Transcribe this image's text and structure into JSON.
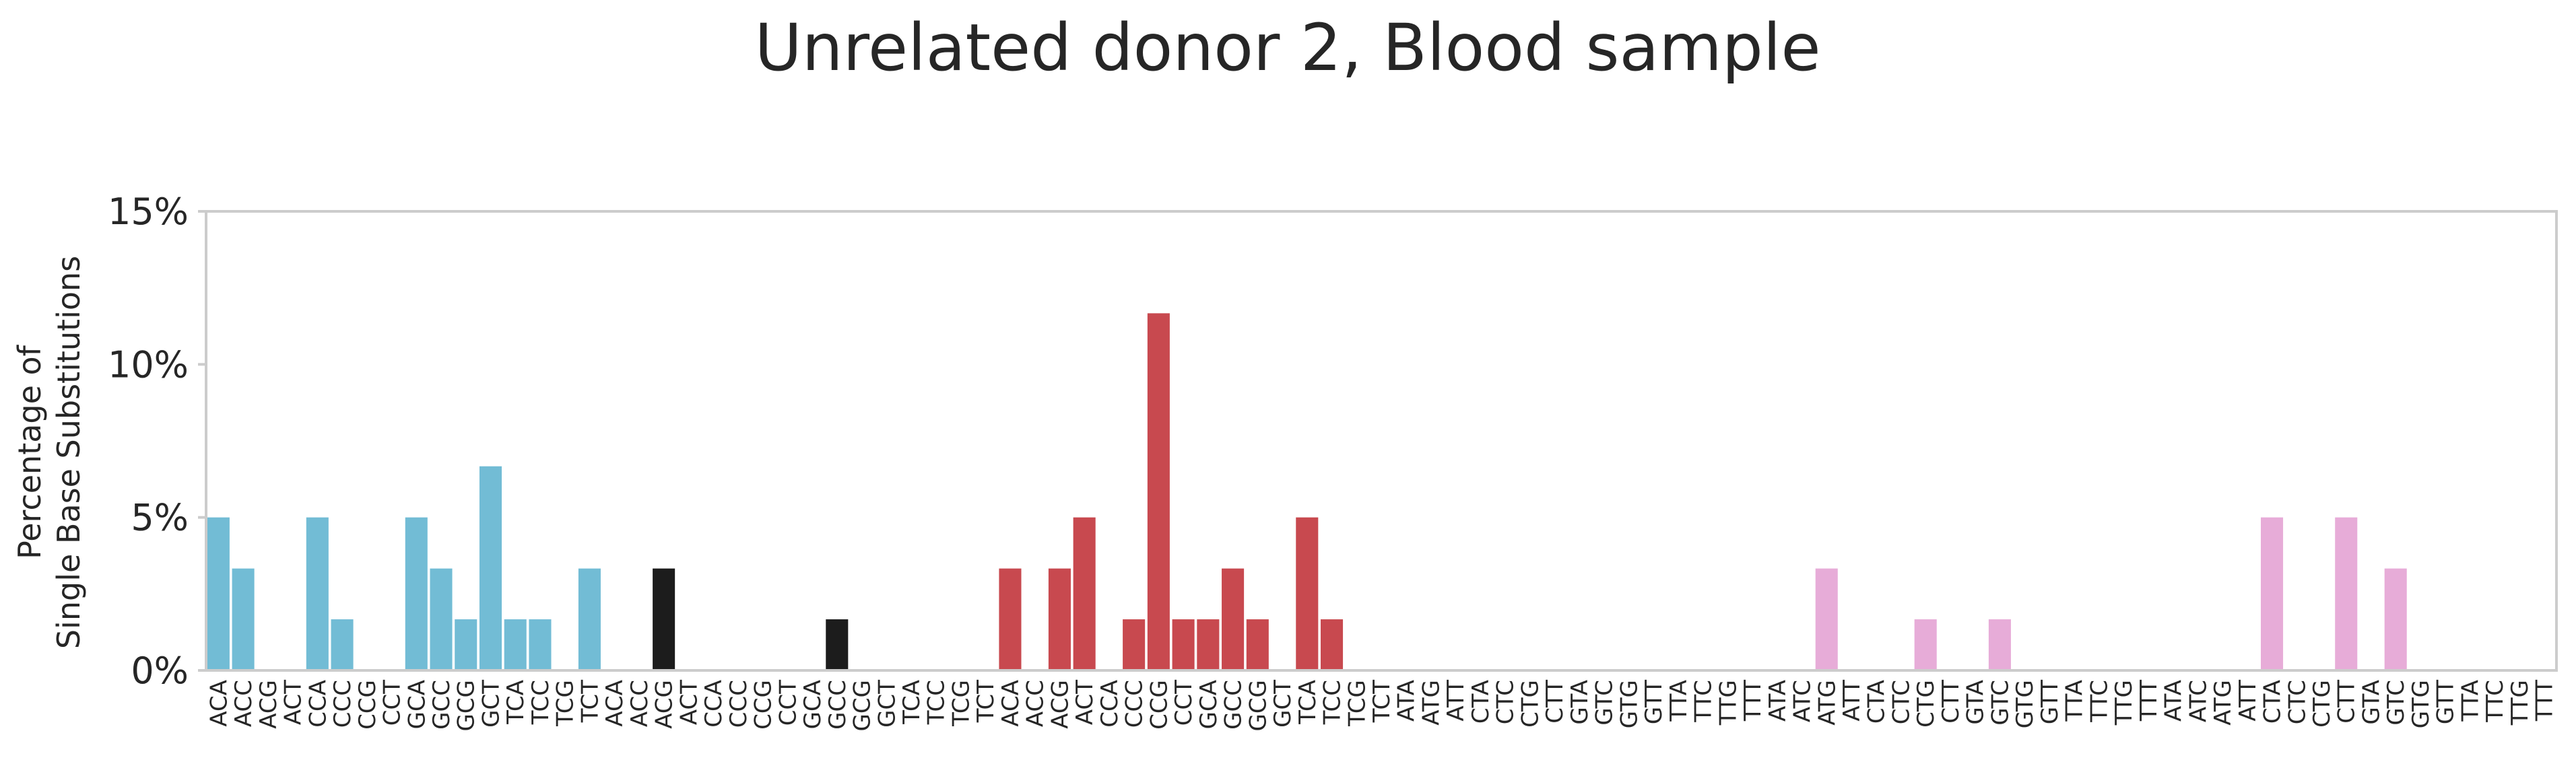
{
  "chart_data": {
    "type": "bar",
    "title": "Unrelated donor 2, Blood sample",
    "ylabel_lines": [
      "Percentage of",
      "Single Base Substitutions"
    ],
    "ylim": [
      0,
      15
    ],
    "yticks": [
      0,
      5,
      10,
      15
    ],
    "ytick_labels": [
      "0%",
      "5%",
      "10%",
      "15%"
    ],
    "grid": false,
    "group_colors": [
      "#72bcd5",
      "#1c1c1c",
      "#c8494f",
      "#54a866",
      "#e7acd8",
      "#e7acd8"
    ],
    "categories": [
      "ACA",
      "ACC",
      "ACG",
      "ACT",
      "CCA",
      "CCC",
      "CCG",
      "CCT",
      "GCA",
      "GCC",
      "GCG",
      "GCT",
      "TCA",
      "TCC",
      "TCG",
      "TCT",
      "ACA",
      "ACC",
      "ACG",
      "ACT",
      "CCA",
      "CCC",
      "CCG",
      "CCT",
      "GCA",
      "GCC",
      "GCG",
      "GCT",
      "TCA",
      "TCC",
      "TCG",
      "TCT",
      "ACA",
      "ACC",
      "ACG",
      "ACT",
      "CCA",
      "CCC",
      "CCG",
      "CCT",
      "GCA",
      "GCC",
      "GCG",
      "GCT",
      "TCA",
      "TCC",
      "TCG",
      "TCT",
      "ATA",
      "ATG",
      "ATT",
      "CTA",
      "CTC",
      "CTG",
      "CTT",
      "GTA",
      "GTC",
      "GTG",
      "GTT",
      "TTA",
      "TTC",
      "TTG",
      "TTT",
      "ATA",
      "ATC",
      "ATG",
      "ATT",
      "CTA",
      "CTC",
      "CTG",
      "CTT",
      "GTA",
      "GTC",
      "GTG",
      "GTT",
      "TTA",
      "TTC",
      "TTG",
      "TTT",
      "ATA",
      "ATC",
      "ATG",
      "ATT",
      "CTA",
      "CTC",
      "CTG",
      "CTT",
      "GTA",
      "GTC",
      "GTG",
      "GTT",
      "TTA",
      "TTC",
      "TTG",
      "TTT"
    ],
    "group_of_category": [
      0,
      0,
      0,
      0,
      0,
      0,
      0,
      0,
      0,
      0,
      0,
      0,
      0,
      0,
      0,
      0,
      1,
      1,
      1,
      1,
      1,
      1,
      1,
      1,
      1,
      1,
      1,
      1,
      1,
      1,
      1,
      1,
      2,
      2,
      2,
      2,
      2,
      2,
      2,
      2,
      2,
      2,
      2,
      2,
      2,
      2,
      2,
      2,
      3,
      3,
      3,
      3,
      3,
      3,
      3,
      3,
      3,
      3,
      3,
      3,
      3,
      3,
      3,
      4,
      4,
      4,
      4,
      4,
      4,
      4,
      4,
      4,
      4,
      4,
      4,
      4,
      4,
      4,
      4,
      5,
      5,
      5,
      5,
      5,
      5,
      5,
      5,
      5,
      5,
      5,
      5,
      5,
      5,
      5,
      5
    ],
    "values": [
      5.0,
      3.33,
      0,
      0,
      5.0,
      1.67,
      0,
      0,
      5.0,
      3.33,
      1.67,
      6.67,
      1.67,
      1.67,
      0,
      3.33,
      0,
      0,
      3.33,
      0,
      0,
      0,
      0,
      0,
      0,
      1.67,
      0,
      0,
      0,
      0,
      0,
      0,
      3.33,
      0,
      3.33,
      5.0,
      0,
      1.67,
      11.67,
      1.67,
      1.67,
      3.33,
      1.67,
      0,
      5.0,
      1.67,
      0,
      0,
      0,
      0,
      0,
      0,
      0,
      0,
      0,
      0,
      0,
      0,
      0,
      0,
      0,
      0,
      0,
      0,
      0,
      3.33,
      0,
      0,
      0,
      1.67,
      0,
      0,
      1.67,
      0,
      0,
      0,
      0,
      0,
      0,
      0,
      0,
      0,
      0,
      5.0,
      0,
      0,
      5.0,
      0,
      3.33,
      0,
      0,
      0,
      0,
      0,
      0
    ]
  }
}
